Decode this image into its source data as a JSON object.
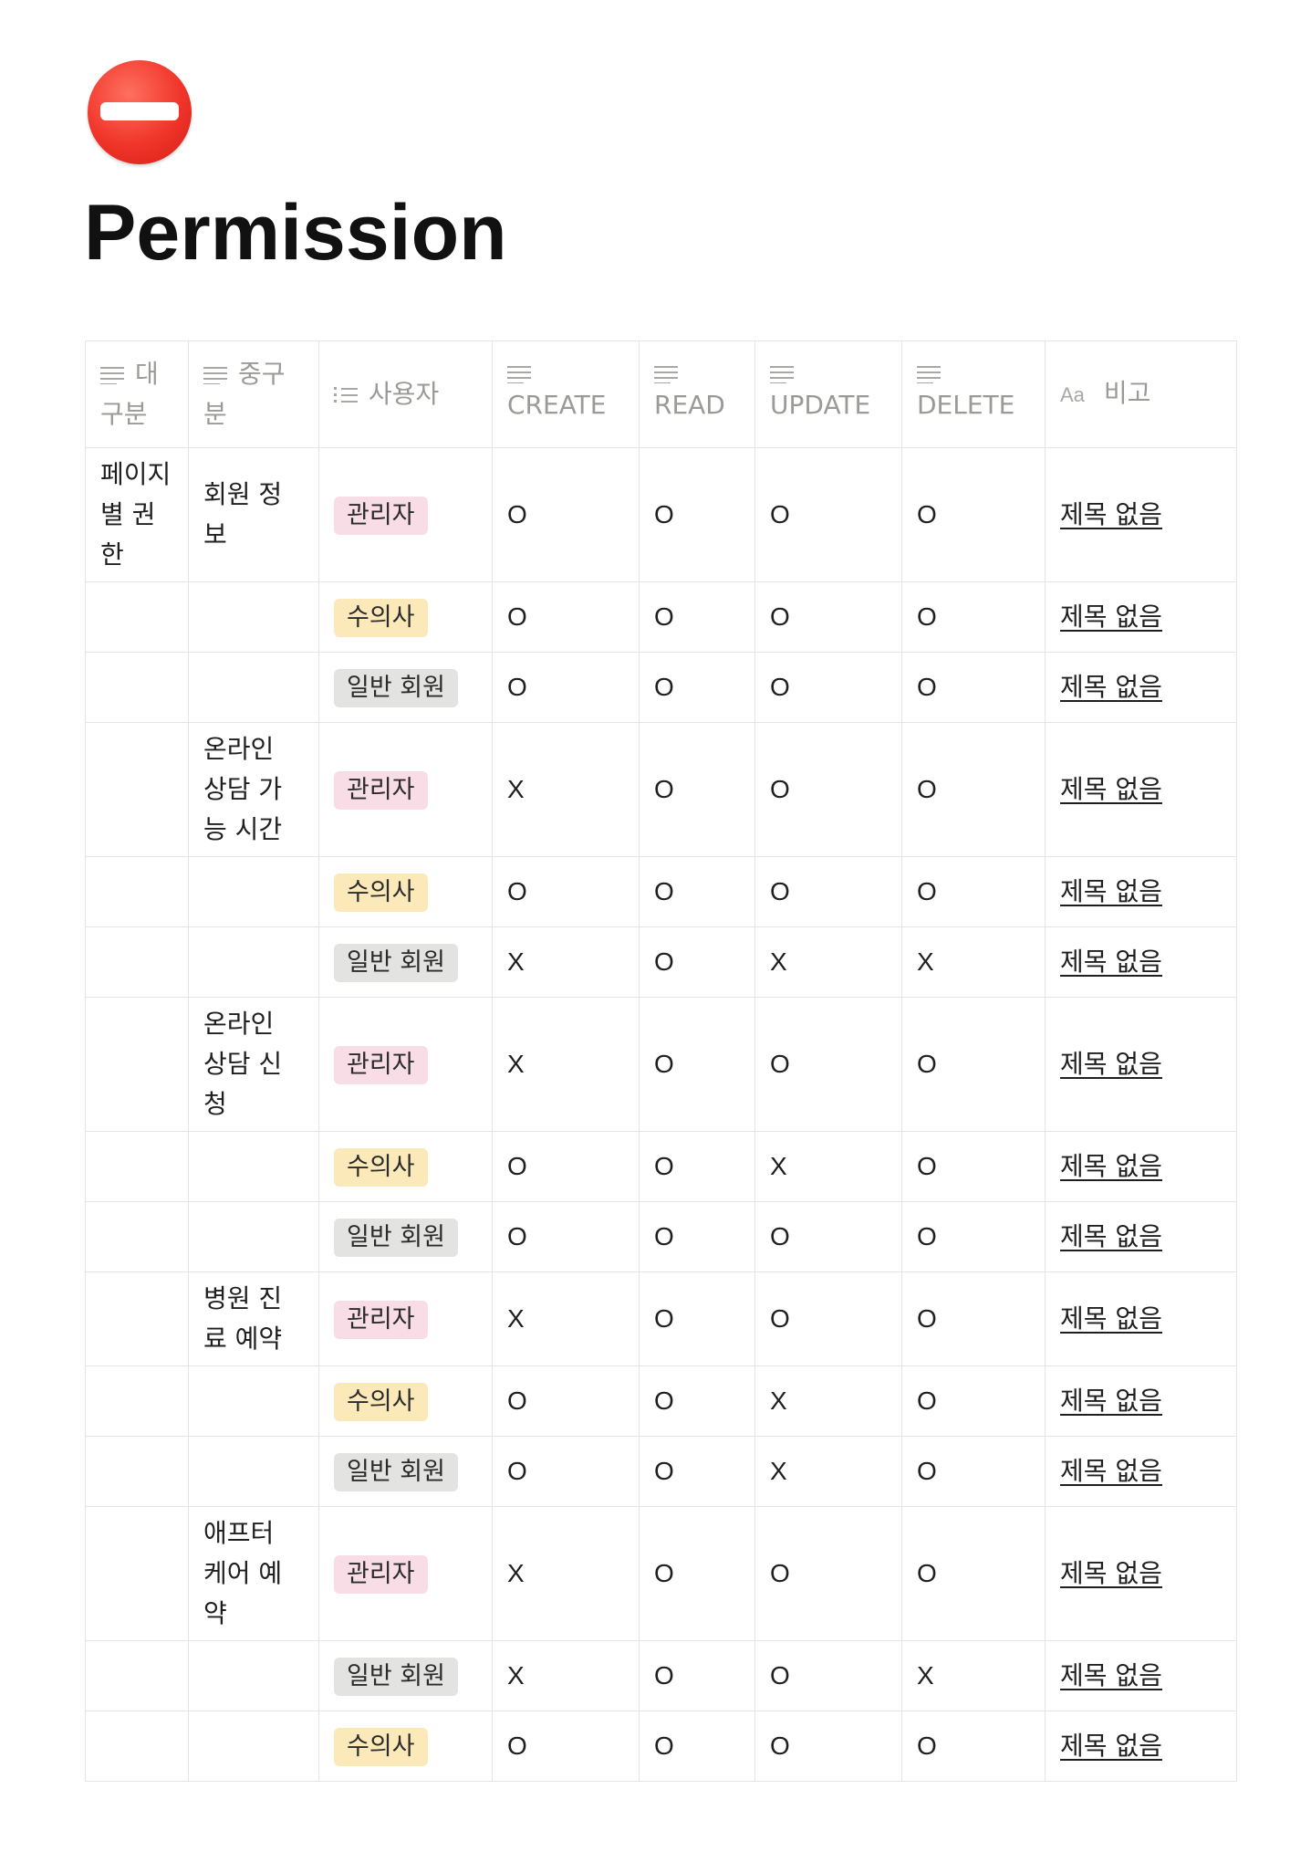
{
  "page": {
    "icon": "no-entry-icon",
    "title": "Permission"
  },
  "colors": {
    "icon_red": "#f0352a",
    "tag_admin": "#f8dde6",
    "tag_vet": "#fbe9b9",
    "tag_member": "#e3e3e1",
    "header_text": "#9a9a97",
    "grid_line": "#e4e4e2"
  },
  "table": {
    "headers": {
      "category": "대구분",
      "subcategory": "중구분",
      "user": "사용자",
      "create": "CREATE",
      "read": "READ",
      "update": "UPDATE",
      "delete": "DELETE",
      "note": "비고"
    },
    "header_icons": {
      "category": "text-lines-icon",
      "subcategory": "text-lines-icon",
      "user": "multi-select-icon",
      "create": "text-lines-icon",
      "read": "text-lines-icon",
      "update": "text-lines-icon",
      "delete": "text-lines-icon",
      "note": "title-aa-icon"
    },
    "note_icon_text": "Aa",
    "rows": [
      {
        "category": "페이지별 권한",
        "subcategory": "회원 정보",
        "user": "관리자",
        "create": "O",
        "read": "O",
        "update": "O",
        "delete": "O",
        "note": "제목 없음"
      },
      {
        "category": "",
        "subcategory": "",
        "user": "수의사",
        "create": "O",
        "read": "O",
        "update": "O",
        "delete": "O",
        "note": "제목 없음"
      },
      {
        "category": "",
        "subcategory": "",
        "user": "일반 회원",
        "create": "O",
        "read": "O",
        "update": "O",
        "delete": "O",
        "note": "제목 없음"
      },
      {
        "category": "",
        "subcategory": "온라인 상담 가능 시간",
        "user": "관리자",
        "create": "X",
        "read": "O",
        "update": "O",
        "delete": "O",
        "note": "제목 없음"
      },
      {
        "category": "",
        "subcategory": "",
        "user": "수의사",
        "create": "O",
        "read": "O",
        "update": "O",
        "delete": "O",
        "note": "제목 없음"
      },
      {
        "category": "",
        "subcategory": "",
        "user": "일반 회원",
        "create": "X",
        "read": "O",
        "update": "X",
        "delete": "X",
        "note": "제목 없음"
      },
      {
        "category": "",
        "subcategory": "온라인 상담 신청",
        "user": "관리자",
        "create": "X",
        "read": "O",
        "update": "O",
        "delete": "O",
        "note": "제목 없음"
      },
      {
        "category": "",
        "subcategory": "",
        "user": "수의사",
        "create": "O",
        "read": "O",
        "update": "X",
        "delete": "O",
        "note": "제목 없음"
      },
      {
        "category": "",
        "subcategory": "",
        "user": "일반 회원",
        "create": "O",
        "read": "O",
        "update": "O",
        "delete": "O",
        "note": "제목 없음"
      },
      {
        "category": "",
        "subcategory": "병원 진료 예약",
        "user": "관리자",
        "create": "X",
        "read": "O",
        "update": "O",
        "delete": "O",
        "note": "제목 없음"
      },
      {
        "category": "",
        "subcategory": "",
        "user": "수의사",
        "create": "O",
        "read": "O",
        "update": "X",
        "delete": "O",
        "note": "제목 없음"
      },
      {
        "category": "",
        "subcategory": "",
        "user": "일반 회원",
        "create": "O",
        "read": "O",
        "update": "X",
        "delete": "O",
        "note": "제목 없음"
      },
      {
        "category": "",
        "subcategory": "애프터 케어 예약",
        "user": "관리자",
        "create": "X",
        "read": "O",
        "update": "O",
        "delete": "O",
        "note": "제목 없음"
      },
      {
        "category": "",
        "subcategory": "",
        "user": "일반 회원",
        "create": "X",
        "read": "O",
        "update": "O",
        "delete": "X",
        "note": "제목 없음"
      },
      {
        "category": "",
        "subcategory": "",
        "user": "수의사",
        "create": "O",
        "read": "O",
        "update": "O",
        "delete": "O",
        "note": "제목 없음"
      }
    ]
  }
}
